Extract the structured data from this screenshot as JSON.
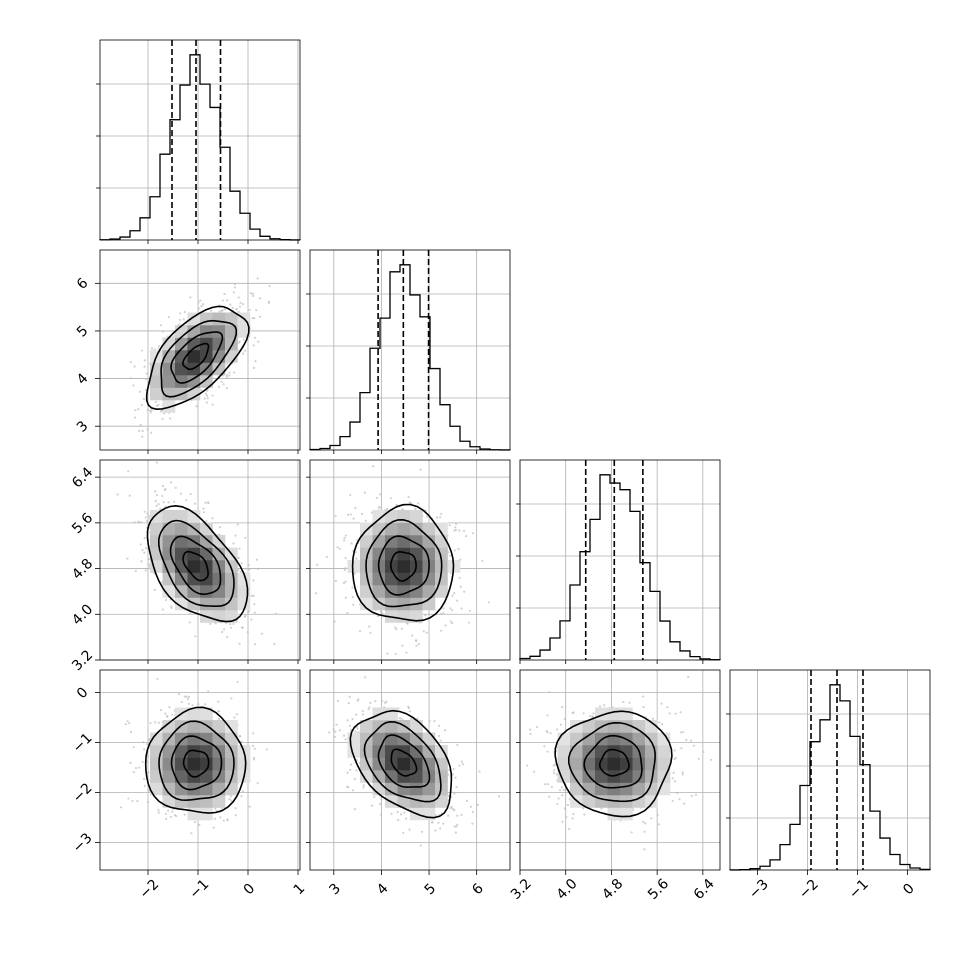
{
  "chart_data": {
    "type": "corner",
    "n_params": 4,
    "labels": [
      "",
      "",
      "",
      ""
    ],
    "ranges": [
      [
        -2.96,
        1.04
      ],
      [
        2.5,
        6.7
      ],
      [
        3.2,
        6.7
      ],
      [
        -3.55,
        0.45
      ]
    ],
    "ticks": [
      [
        -2,
        -1,
        0,
        1
      ],
      [
        3,
        4,
        5,
        6
      ],
      [
        3.2,
        4.0,
        4.8,
        5.6,
        6.4
      ],
      [
        -3,
        -2,
        -1,
        0
      ]
    ],
    "tick_labels": [
      [
        "−2",
        "−1",
        "0",
        "1"
      ],
      [
        "3",
        "4",
        "5",
        "6"
      ],
      [
        "3.2",
        "4.0",
        "4.8",
        "5.6",
        "6.4"
      ],
      [
        "−3",
        "−2",
        "−1",
        "0"
      ]
    ],
    "means": [
      -1.04,
      4.46,
      4.85,
      -1.41
    ],
    "stds": [
      0.5,
      0.53,
      0.5,
      0.52
    ],
    "quantiles": [
      [
        -1.52,
        -1.04,
        -0.55
      ],
      [
        3.93,
        4.46,
        4.99
      ],
      [
        4.35,
        4.85,
        5.35
      ],
      [
        -1.93,
        -1.41,
        -0.89
      ]
    ],
    "correlations": [
      [
        1.0,
        0.6,
        -0.5,
        0.0
      ],
      [
        0.6,
        1.0,
        0.0,
        -0.4
      ],
      [
        -0.5,
        0.0,
        1.0,
        0.0
      ],
      [
        0.0,
        -0.4,
        0.0,
        1.0
      ]
    ],
    "histogram_bins": 20,
    "contour_levels": [
      0.5,
      1.0,
      1.5,
      2.0
    ],
    "grid": true,
    "colors": {
      "line": "#000000",
      "grid": "#b0b0b0",
      "points": "#bdbdbd"
    }
  }
}
